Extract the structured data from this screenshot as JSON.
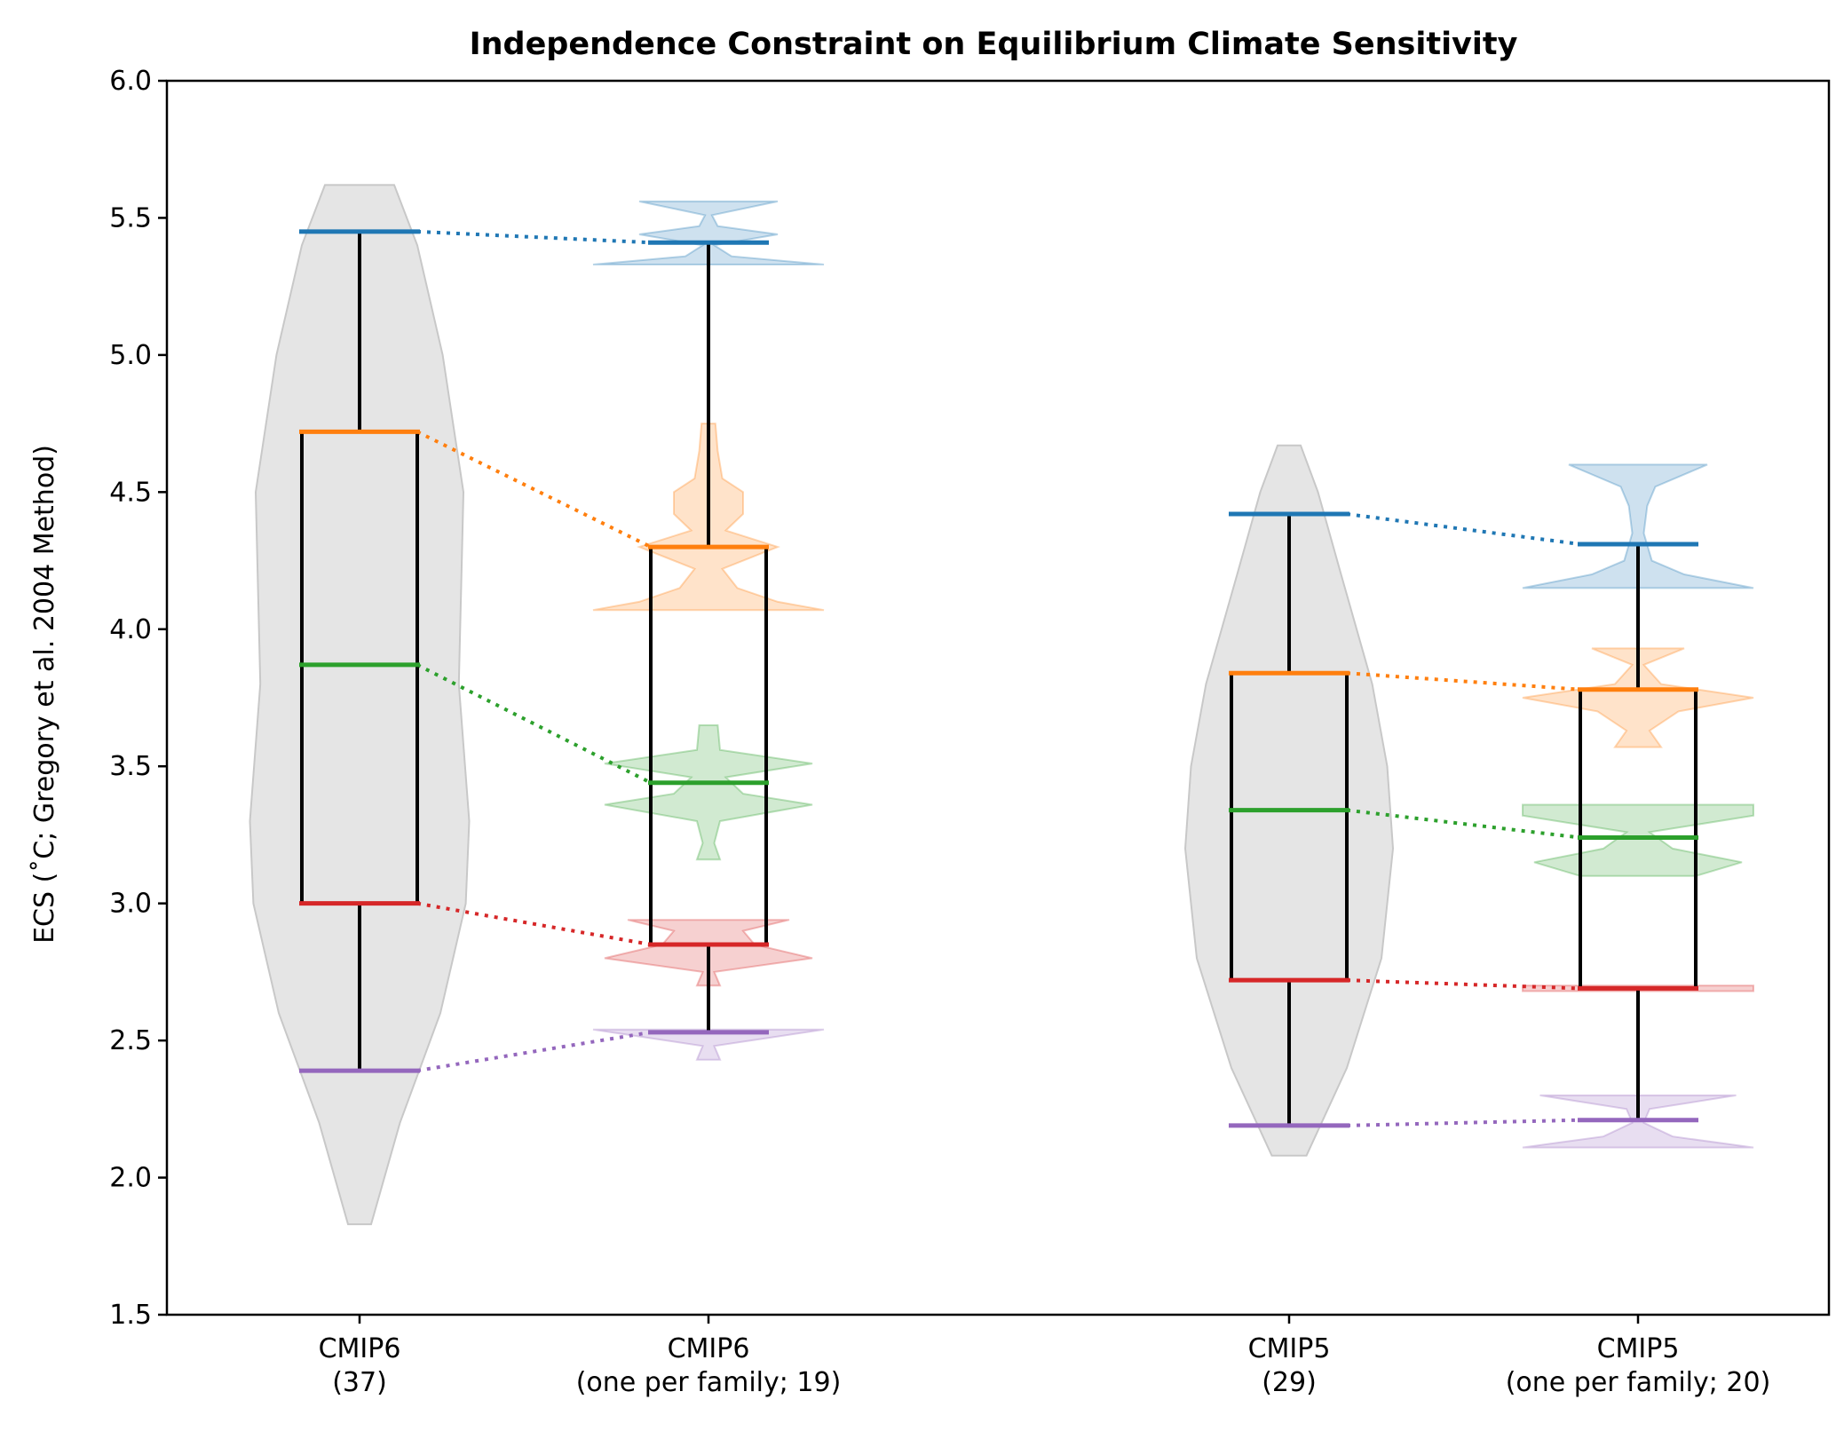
{
  "chart_data": {
    "type": "violin-box",
    "title": "Independence Constraint on Equilibrium Climate Sensitivity",
    "ylabel": "ECS (˚C; Gregory et al. 2004 Method)",
    "ylim": [
      1.5,
      6.0
    ],
    "yticks": [
      "1.5",
      "2.0",
      "2.5",
      "3.0",
      "3.5",
      "4.0",
      "4.5",
      "5.0",
      "5.5",
      "6.0"
    ],
    "grid": false,
    "colors": {
      "p95": "#1f77b4",
      "p75": "#ff7f0e",
      "median": "#2ca02c",
      "p25": "#d62728",
      "p05": "#9467bd",
      "full_violin": "#e5e5e5",
      "whisker": "#000000"
    },
    "groups": [
      {
        "label_line1": "CMIP6",
        "label_line2": "(37)",
        "stats": {
          "p05": 2.39,
          "p25": 3.0,
          "median": 3.87,
          "p75": 4.72,
          "p95": 5.45
        },
        "violin": [
          [
            1.83,
            0.1
          ],
          [
            2.2,
            0.35
          ],
          [
            2.6,
            0.7
          ],
          [
            3.0,
            0.92
          ],
          [
            3.3,
            0.95
          ],
          [
            3.8,
            0.86
          ],
          [
            4.5,
            0.9
          ],
          [
            5.0,
            0.72
          ],
          [
            5.4,
            0.5
          ],
          [
            5.62,
            0.3
          ]
        ]
      },
      {
        "label_line1": "CMIP6",
        "label_line2": "(one per family; 19)",
        "stats": {
          "p05": 2.53,
          "p25": 2.85,
          "median": 3.44,
          "p75": 4.3,
          "p95": 5.41
        },
        "violins": [
          {
            "key": "p95",
            "shape": [
              [
                5.33,
                1.0
              ],
              [
                5.36,
                0.2
              ],
              [
                5.4,
                0.05
              ],
              [
                5.44,
                0.6
              ],
              [
                5.47,
                0.08
              ],
              [
                5.51,
                0.03
              ],
              [
                5.56,
                0.6
              ]
            ]
          },
          {
            "key": "p75",
            "shape": [
              [
                4.07,
                1.0
              ],
              [
                4.1,
                0.6
              ],
              [
                4.15,
                0.25
              ],
              [
                4.22,
                0.12
              ],
              [
                4.3,
                0.6
              ],
              [
                4.36,
                0.15
              ],
              [
                4.42,
                0.3
              ],
              [
                4.5,
                0.3
              ],
              [
                4.55,
                0.12
              ],
              [
                4.65,
                0.08
              ],
              [
                4.75,
                0.06
              ]
            ]
          },
          {
            "key": "median",
            "shape": [
              [
                3.16,
                0.1
              ],
              [
                3.22,
                0.05
              ],
              [
                3.3,
                0.1
              ],
              [
                3.36,
                0.9
              ],
              [
                3.4,
                0.3
              ],
              [
                3.46,
                0.15
              ],
              [
                3.51,
                0.9
              ],
              [
                3.56,
                0.1
              ],
              [
                3.65,
                0.08
              ]
            ]
          },
          {
            "key": "p25",
            "shape": [
              [
                2.7,
                0.1
              ],
              [
                2.75,
                0.05
              ],
              [
                2.8,
                0.9
              ],
              [
                2.85,
                0.4
              ],
              [
                2.9,
                0.3
              ],
              [
                2.94,
                0.7
              ]
            ]
          },
          {
            "key": "p05",
            "shape": [
              [
                2.43,
                0.1
              ],
              [
                2.48,
                0.05
              ],
              [
                2.54,
                1.0
              ]
            ]
          }
        ]
      },
      {
        "label_line1": "CMIP5",
        "label_line2": "(29)",
        "stats": {
          "p05": 2.19,
          "p25": 2.72,
          "median": 3.34,
          "p75": 3.84,
          "p95": 4.42
        },
        "violin": [
          [
            2.08,
            0.15
          ],
          [
            2.4,
            0.5
          ],
          [
            2.8,
            0.8
          ],
          [
            3.2,
            0.9
          ],
          [
            3.5,
            0.85
          ],
          [
            3.8,
            0.72
          ],
          [
            4.2,
            0.45
          ],
          [
            4.5,
            0.25
          ],
          [
            4.67,
            0.1
          ]
        ]
      },
      {
        "label_line1": "CMIP5",
        "label_line2": "(one per family; 20)",
        "stats": {
          "p05": 2.21,
          "p25": 2.69,
          "median": 3.24,
          "p75": 3.78,
          "p95": 4.31
        },
        "violins": [
          {
            "key": "p95",
            "shape": [
              [
                4.15,
                1.0
              ],
              [
                4.2,
                0.4
              ],
              [
                4.25,
                0.12
              ],
              [
                4.35,
                0.05
              ],
              [
                4.45,
                0.08
              ],
              [
                4.52,
                0.15
              ],
              [
                4.6,
                0.6
              ]
            ]
          },
          {
            "key": "p75",
            "shape": [
              [
                3.57,
                0.2
              ],
              [
                3.63,
                0.1
              ],
              [
                3.7,
                0.35
              ],
              [
                3.75,
                1.0
              ],
              [
                3.8,
                0.2
              ],
              [
                3.87,
                0.05
              ],
              [
                3.93,
                0.4
              ]
            ]
          },
          {
            "key": "median",
            "shape": [
              [
                3.1,
                0.5
              ],
              [
                3.15,
                0.9
              ],
              [
                3.2,
                0.3
              ],
              [
                3.26,
                0.1
              ],
              [
                3.32,
                1.0
              ],
              [
                3.36,
                1.0
              ]
            ]
          },
          {
            "key": "p25",
            "shape": [
              [
                2.68,
                1.0
              ],
              [
                2.7,
                1.0
              ]
            ]
          },
          {
            "key": "p05",
            "shape": [
              [
                2.11,
                1.0
              ],
              [
                2.15,
                0.3
              ],
              [
                2.2,
                0.05
              ],
              [
                2.25,
                0.1
              ],
              [
                2.3,
                0.85
              ]
            ]
          }
        ]
      }
    ]
  }
}
